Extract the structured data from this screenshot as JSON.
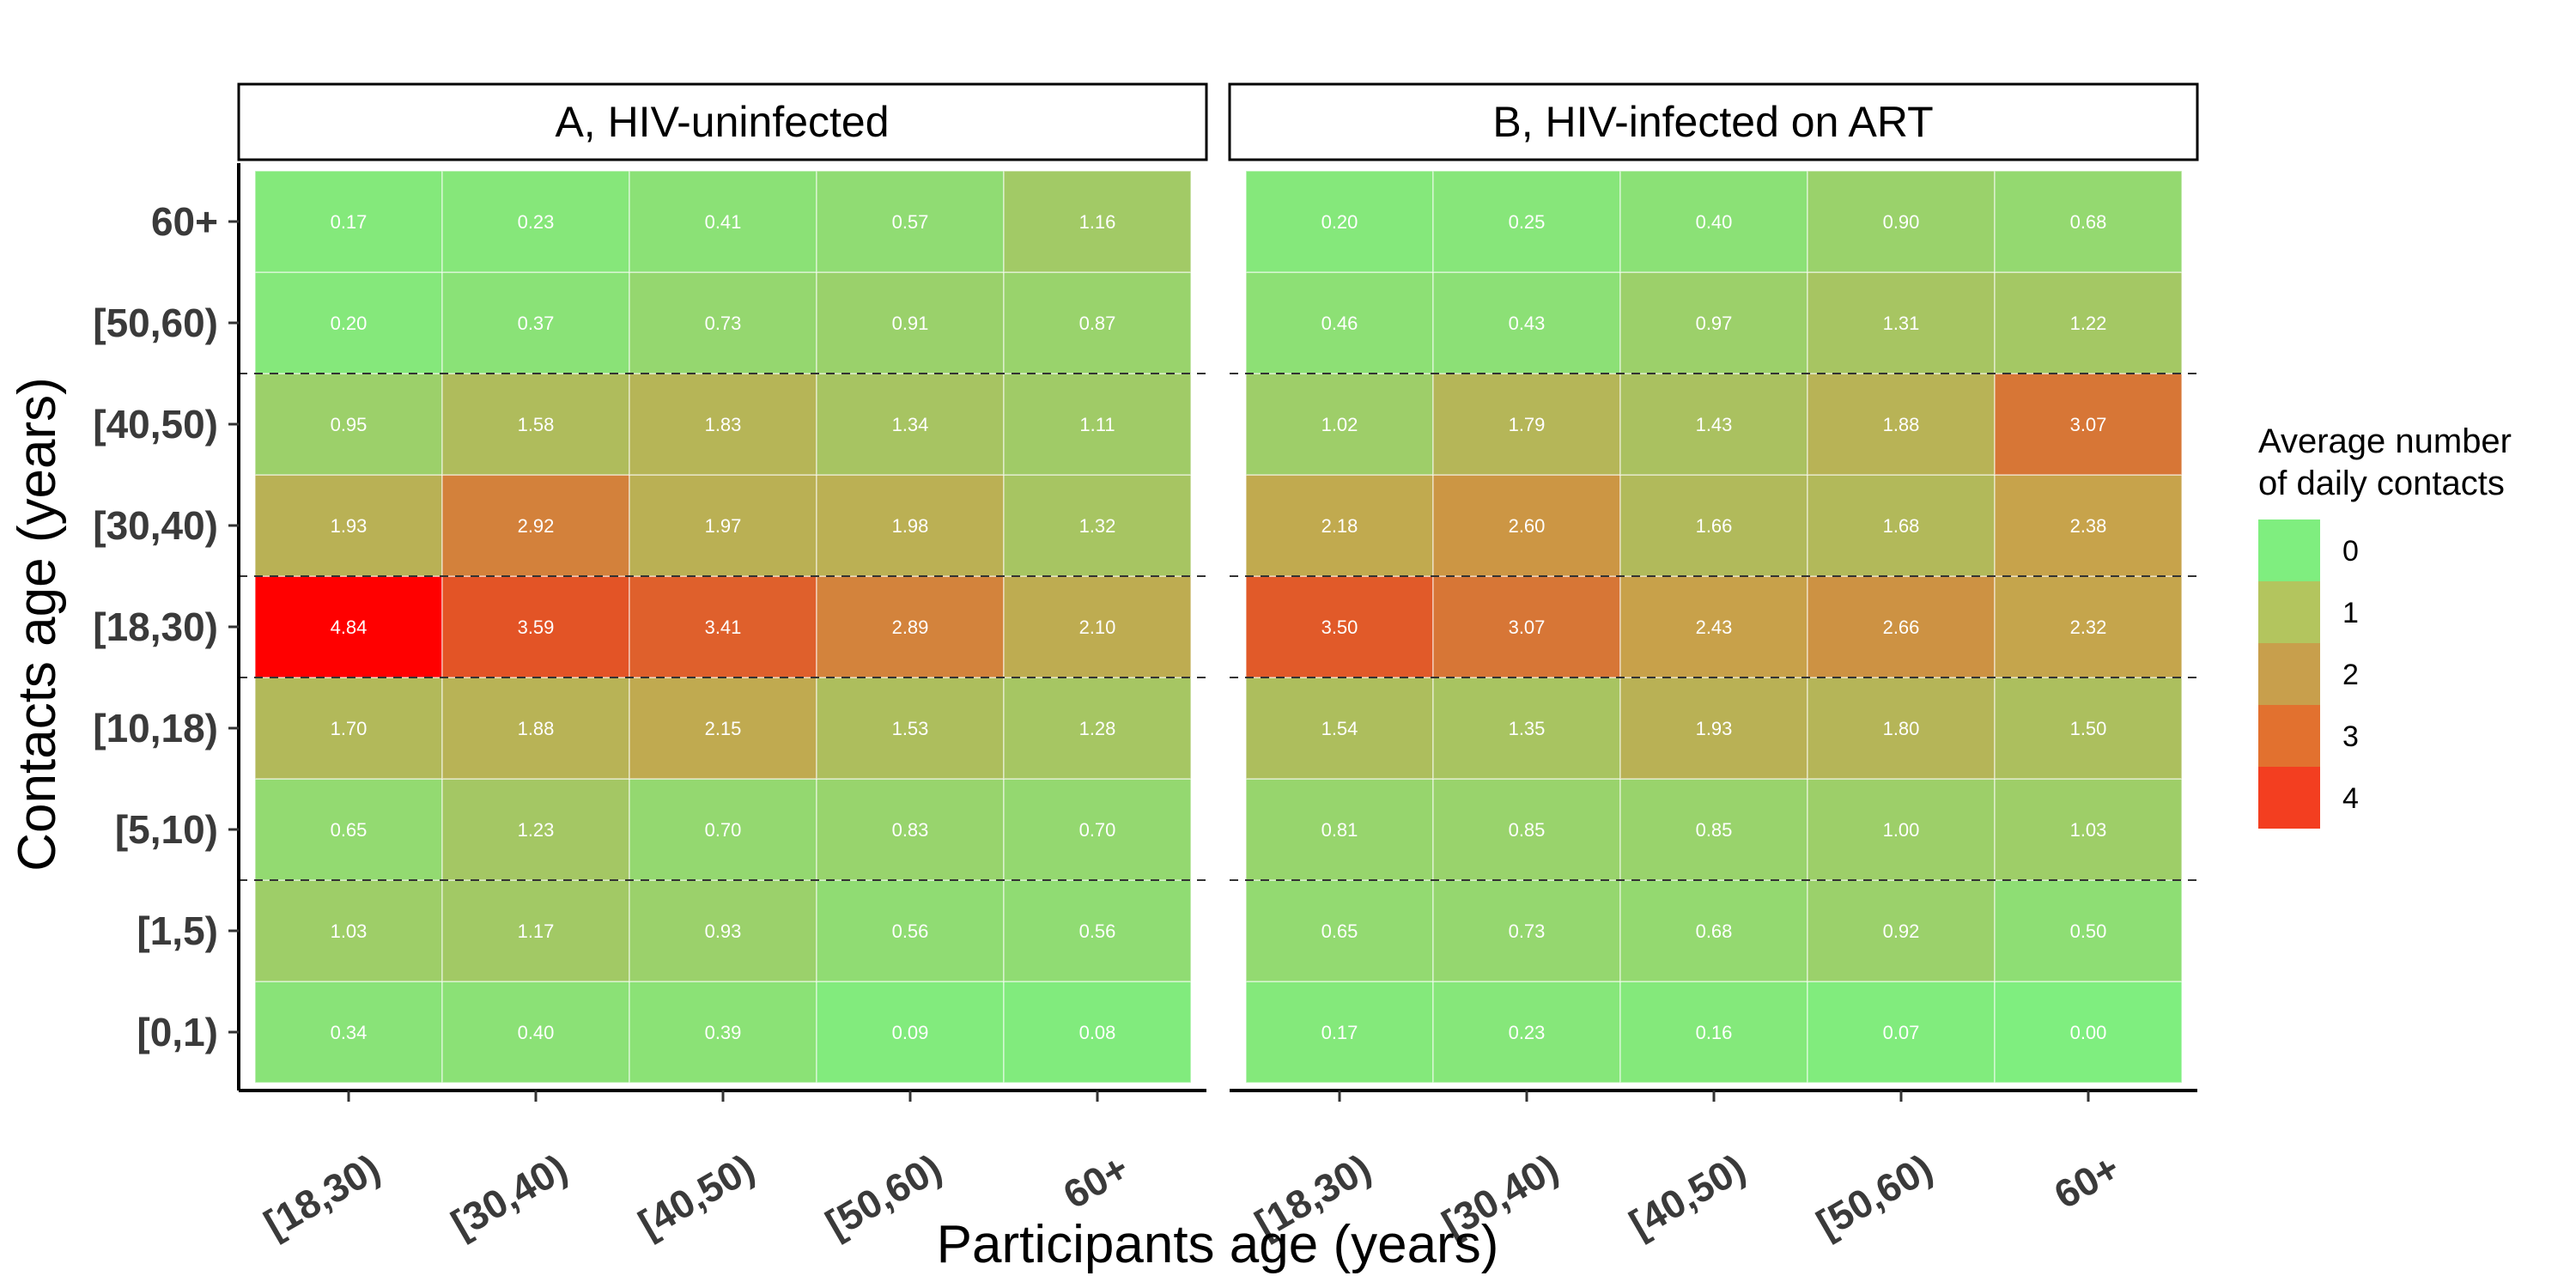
{
  "chart_data": {
    "type": "heatmap",
    "xlabel": "Participants age (years)",
    "ylabel": "Contacts age (years)",
    "x_categories": [
      "[18,30)",
      "[30,40)",
      "[40,50)",
      "[50,60)",
      "60+"
    ],
    "y_categories": [
      "[0,1)",
      "[1,5)",
      "[5,10)",
      "[10,18)",
      "[18,30)",
      "[30,40)",
      "[40,50)",
      "[50,60)",
      "60+"
    ],
    "panels": [
      {
        "title": "A, HIV-uninfected",
        "values": [
          [
            0.34,
            0.4,
            0.39,
            0.09,
            0.08
          ],
          [
            1.03,
            1.17,
            0.93,
            0.56,
            0.56
          ],
          [
            0.65,
            1.23,
            0.7,
            0.83,
            0.7
          ],
          [
            1.7,
            1.88,
            2.15,
            1.53,
            1.28
          ],
          [
            4.84,
            3.59,
            3.41,
            2.89,
            2.1
          ],
          [
            1.93,
            2.92,
            1.97,
            1.98,
            1.32
          ],
          [
            0.95,
            1.58,
            1.83,
            1.34,
            1.11
          ],
          [
            0.2,
            0.37,
            0.73,
            0.91,
            0.87
          ],
          [
            0.17,
            0.23,
            0.41,
            0.57,
            1.16
          ]
        ]
      },
      {
        "title": "B, HIV-infected on ART",
        "values": [
          [
            0.17,
            0.23,
            0.16,
            0.07,
            0.0
          ],
          [
            0.65,
            0.73,
            0.68,
            0.92,
            0.5
          ],
          [
            0.81,
            0.85,
            0.85,
            1.0,
            1.03
          ],
          [
            1.54,
            1.35,
            1.93,
            1.8,
            1.5
          ],
          [
            3.5,
            3.07,
            2.43,
            2.66,
            2.32
          ],
          [
            2.18,
            2.6,
            1.66,
            1.68,
            2.38
          ],
          [
            1.02,
            1.79,
            1.43,
            1.88,
            3.07
          ],
          [
            0.46,
            0.43,
            0.97,
            1.31,
            1.22
          ],
          [
            0.2,
            0.25,
            0.4,
            0.9,
            0.68
          ]
        ]
      }
    ],
    "dashed_separators_between_y": [
      [
        "[1,5)",
        "[5,10)"
      ],
      [
        "[10,18)",
        "[18,30)"
      ],
      [
        "[18,30)",
        "[30,40)"
      ],
      [
        "[40,50)",
        "[50,60)"
      ]
    ],
    "legend": {
      "title_lines": [
        "Average number",
        "of daily contacts"
      ],
      "breaks": [
        0,
        1,
        2,
        3,
        4
      ],
      "placement": "right"
    },
    "colors": {
      "low": "#7fee7f",
      "mid": "#c8a24a",
      "high": "#ff0000",
      "legend_swatches": [
        "#7fee7f",
        "#b3c55e",
        "#c89f4c",
        "#e2712f",
        "#f33e20"
      ]
    },
    "grid": false
  }
}
